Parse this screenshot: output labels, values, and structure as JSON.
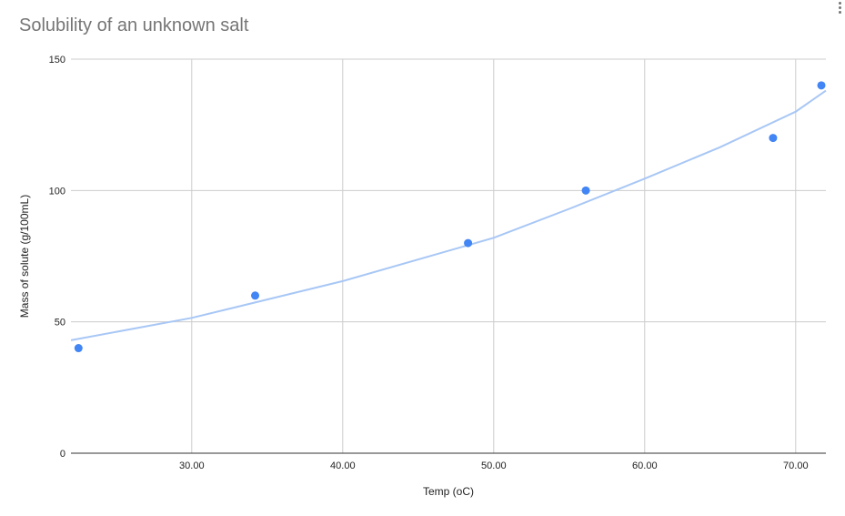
{
  "chart_data": {
    "type": "scatter",
    "title": "Solubility of an unknown salt",
    "xlabel": "Temp (oC)",
    "ylabel": "Mass of solute (g/100mL)",
    "xlim": [
      22,
      72
    ],
    "ylim": [
      0,
      150
    ],
    "x_ticks": [
      "30.00",
      "40.00",
      "50.00",
      "60.00",
      "70.00"
    ],
    "y_ticks": [
      "0",
      "50",
      "100",
      "150"
    ],
    "grid": true,
    "legend": "none",
    "series": [
      {
        "x": [
          22.5,
          34.2,
          48.3,
          56.1,
          68.5,
          71.7
        ],
        "y": [
          40,
          60,
          80,
          100,
          120,
          140
        ],
        "color": "#4285f4"
      }
    ],
    "trendline": {
      "type": "exponential",
      "color": "#a8c7f5",
      "x": [
        22,
        30,
        40,
        50,
        55,
        60,
        65,
        70,
        72
      ],
      "y": [
        43,
        51.5,
        65.5,
        82,
        93,
        104.5,
        116.5,
        130,
        138
      ]
    }
  }
}
